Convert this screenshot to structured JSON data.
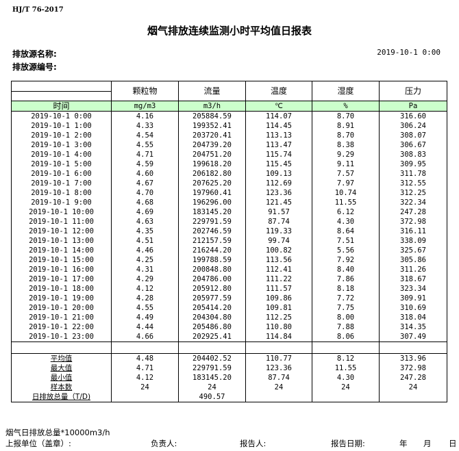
{
  "standard": "HJ/T  76-2017",
  "title": "烟气排放连续监测小时平均值日报表",
  "source_name_label": "排放源名称:",
  "source_id_label": "排放源编号:",
  "report_datetime": "2019-10-1  0:00",
  "columns": [
    "颗粒物",
    "流量",
    "温度",
    "湿度",
    "压力"
  ],
  "time_label": "时间",
  "units": [
    "mg/m3",
    "m3/h",
    "℃",
    "%",
    "Pa"
  ],
  "header_color": "#ccffcc",
  "rows": [
    [
      "2019-10-1 0:00",
      "4.16",
      "205884.59",
      "114.07",
      "8.70",
      "316.60"
    ],
    [
      "2019-10-1 1:00",
      "4.33",
      "199352.41",
      "114.45",
      "8.91",
      "306.24"
    ],
    [
      "2019-10-1 2:00",
      "4.54",
      "203720.41",
      "113.13",
      "8.70",
      "308.07"
    ],
    [
      "2019-10-1 3:00",
      "4.55",
      "204739.20",
      "113.47",
      "8.38",
      "306.67"
    ],
    [
      "2019-10-1 4:00",
      "4.71",
      "204751.20",
      "115.74",
      "9.29",
      "308.83"
    ],
    [
      "2019-10-1 5:00",
      "4.59",
      "199618.20",
      "115.45",
      "9.11",
      "309.95"
    ],
    [
      "2019-10-1 6:00",
      "4.60",
      "206182.80",
      "109.13",
      "7.57",
      "311.78"
    ],
    [
      "2019-10-1 7:00",
      "4.67",
      "207625.20",
      "112.69",
      "7.97",
      "312.55"
    ],
    [
      "2019-10-1 8:00",
      "4.70",
      "197960.41",
      "123.36",
      "10.74",
      "312.25"
    ],
    [
      "2019-10-1 9:00",
      "4.68",
      "196296.00",
      "121.45",
      "11.55",
      "322.34"
    ],
    [
      "2019-10-1 10:00",
      "4.69",
      "183145.20",
      "91.57",
      "6.12",
      "247.28"
    ],
    [
      "2019-10-1 11:00",
      "4.63",
      "229791.59",
      "87.74",
      "4.30",
      "372.98"
    ],
    [
      "2019-10-1 12:00",
      "4.35",
      "202746.59",
      "119.33",
      "8.64",
      "316.11"
    ],
    [
      "2019-10-1 13:00",
      "4.51",
      "212157.59",
      "99.74",
      "7.51",
      "338.09"
    ],
    [
      "2019-10-1 14:00",
      "4.46",
      "216244.20",
      "100.82",
      "5.56",
      "325.67"
    ],
    [
      "2019-10-1 15:00",
      "4.25",
      "199788.59",
      "113.56",
      "7.92",
      "305.86"
    ],
    [
      "2019-10-1 16:00",
      "4.31",
      "200848.80",
      "112.41",
      "8.40",
      "311.26"
    ],
    [
      "2019-10-1 17:00",
      "4.29",
      "204786.00",
      "111.22",
      "7.86",
      "318.67"
    ],
    [
      "2019-10-1 18:00",
      "4.12",
      "205912.80",
      "111.57",
      "8.18",
      "323.34"
    ],
    [
      "2019-10-1 19:00",
      "4.28",
      "205977.59",
      "109.86",
      "7.72",
      "309.91"
    ],
    [
      "2019-10-1 20:00",
      "4.55",
      "205414.20",
      "109.81",
      "7.75",
      "310.69"
    ],
    [
      "2019-10-1 21:00",
      "4.49",
      "204304.80",
      "112.25",
      "8.00",
      "318.04"
    ],
    [
      "2019-10-1 22:00",
      "4.44",
      "205486.80",
      "110.80",
      "7.88",
      "314.35"
    ],
    [
      "2019-10-1 23:00",
      "4.66",
      "202925.41",
      "114.84",
      "8.06",
      "307.49"
    ]
  ],
  "summary": [
    [
      "平均值",
      "4.48",
      "204402.52",
      "110.77",
      "8.12",
      "313.96"
    ],
    [
      "最大值",
      "4.71",
      "229791.59",
      "123.36",
      "11.55",
      "372.98"
    ],
    [
      "最小值",
      "4.12",
      "183145.20",
      "87.74",
      "4.30",
      "247.28"
    ],
    [
      "样本数",
      "24",
      "24",
      "24",
      "24",
      "24"
    ],
    [
      "日排放总量（T/D)",
      "",
      "490.57",
      "",
      "",
      ""
    ]
  ],
  "footer": {
    "note": "烟气日排放总量*10000m3/h",
    "unit_label": "上报单位（盖章）:",
    "responsible_label": "负责人:",
    "reporter_label": "报告人:",
    "report_date_label": "报告日期:",
    "year": "年",
    "month": "月",
    "day": "日"
  }
}
